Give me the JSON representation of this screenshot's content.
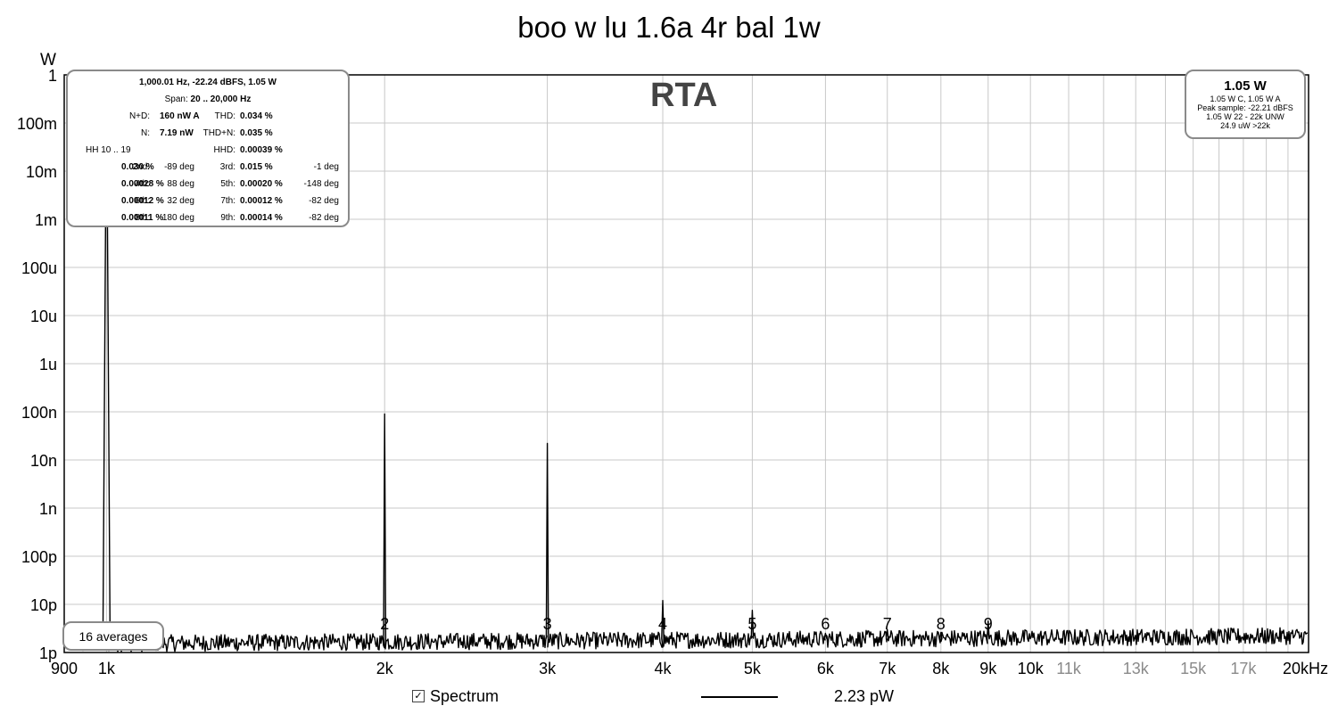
{
  "title": "boo w lu 1.6a 4r bal 1w",
  "watermark": "RTA",
  "stats": {
    "header": "1,000.01 Hz, -22.24 dBFS, 1.05 W",
    "span_label": "Span:",
    "span_value": "20 .. 20,000 Hz",
    "nd_label": "N+D:",
    "nd_value": "160 nW A",
    "thd_label": "THD:",
    "thd_value": "0.034 %",
    "n_label": "N:",
    "n_value": "7.19 nW",
    "thdn_label": "THD+N:",
    "thdn_value": "0.035 %",
    "hh_label": "HH 10 .. 19",
    "hhd_label": "HHD:",
    "hhd_value": "0.00039 %",
    "harmonics": [
      {
        "l1": "2nd:",
        "v1": "0.030 %",
        "d1": "-89 deg",
        "l2": "3rd:",
        "v2": "0.015 %",
        "d2": "-1 deg"
      },
      {
        "l1": "4th:",
        "v1": "0.00028 %",
        "d1": "88 deg",
        "l2": "5th:",
        "v2": "0.00020 %",
        "d2": "-148 deg"
      },
      {
        "l1": "6th:",
        "v1": "0.00012 %",
        "d1": "32 deg",
        "l2": "7th:",
        "v2": "0.00012 %",
        "d2": "-82 deg"
      },
      {
        "l1": "8th:",
        "v1": "0.00011 %",
        "d1": "180 deg",
        "l2": "9th:",
        "v2": "0.00014 %",
        "d2": "-82 deg"
      }
    ]
  },
  "levels": {
    "main": "1.05 W",
    "line1": "1.05 W C, 1.05 W A",
    "line2": "Peak sample: -22.21 dBFS",
    "line3": "1.05 W 22 - 22k UNW",
    "line4": "24.9 uW >22k"
  },
  "averages": "16 averages",
  "legend": {
    "label": "Spectrum",
    "value": "2.23 pW",
    "checked": true
  },
  "chart_data": {
    "type": "line",
    "title": "boo w lu 1.6a 4r bal 1w",
    "ylabel": "W",
    "xlabel": "",
    "x_unit": "kHz",
    "x_scale": "log",
    "y_scale": "log",
    "xlim": [
      900,
      20000
    ],
    "ylim": [
      1e-12,
      1
    ],
    "x_ticks": [
      {
        "value": 900,
        "label": "900",
        "major": true
      },
      {
        "value": 1000,
        "label": "1k",
        "major": true
      },
      {
        "value": 2000,
        "label": "2k",
        "major": true
      },
      {
        "value": 3000,
        "label": "3k",
        "major": true
      },
      {
        "value": 4000,
        "label": "4k",
        "major": true
      },
      {
        "value": 5000,
        "label": "5k",
        "major": true
      },
      {
        "value": 6000,
        "label": "6k",
        "major": true
      },
      {
        "value": 7000,
        "label": "7k",
        "major": true
      },
      {
        "value": 8000,
        "label": "8k",
        "major": true
      },
      {
        "value": 9000,
        "label": "9k",
        "major": true
      },
      {
        "value": 10000,
        "label": "10k",
        "major": true
      },
      {
        "value": 11000,
        "label": "11k",
        "major": false
      },
      {
        "value": 13000,
        "label": "13k",
        "major": false
      },
      {
        "value": 15000,
        "label": "15k",
        "major": false
      },
      {
        "value": 17000,
        "label": "17k",
        "major": false
      },
      {
        "value": 20000,
        "label": "20kHz",
        "major": true
      }
    ],
    "y_ticks": [
      {
        "value": 1,
        "label": "1"
      },
      {
        "value": 0.1,
        "label": "100m"
      },
      {
        "value": 0.01,
        "label": "10m"
      },
      {
        "value": 0.001,
        "label": "1m"
      },
      {
        "value": 0.0001,
        "label": "100u"
      },
      {
        "value": 1e-05,
        "label": "10u"
      },
      {
        "value": 1e-06,
        "label": "1u"
      },
      {
        "value": 1e-07,
        "label": "100n"
      },
      {
        "value": 1e-08,
        "label": "10n"
      },
      {
        "value": 1e-09,
        "label": "1n"
      },
      {
        "value": 1e-10,
        "label": "100p"
      },
      {
        "value": 1e-11,
        "label": "10p"
      },
      {
        "value": 1e-12,
        "label": "1p"
      }
    ],
    "noise_floor": 1.8e-12,
    "series": [
      {
        "name": "Spectrum",
        "peaks": [
          {
            "x": 1000,
            "y": 1.05,
            "label": ""
          },
          {
            "x": 2000,
            "y": 9e-08,
            "label": "2"
          },
          {
            "x": 3000,
            "y": 2.2e-08,
            "label": "3"
          },
          {
            "x": 4000,
            "y": 1.2e-11,
            "label": "4"
          },
          {
            "x": 5000,
            "y": 7.5e-12,
            "label": "5"
          },
          {
            "x": 6000,
            "y": 2.5e-12,
            "label": "6"
          },
          {
            "x": 7000,
            "y": 3e-12,
            "label": "7"
          },
          {
            "x": 8000,
            "y": 2.6e-12,
            "label": "8"
          },
          {
            "x": 9000,
            "y": 4.5e-12,
            "label": "9"
          }
        ]
      }
    ],
    "grid": true,
    "legend_position": "bottom-center"
  }
}
